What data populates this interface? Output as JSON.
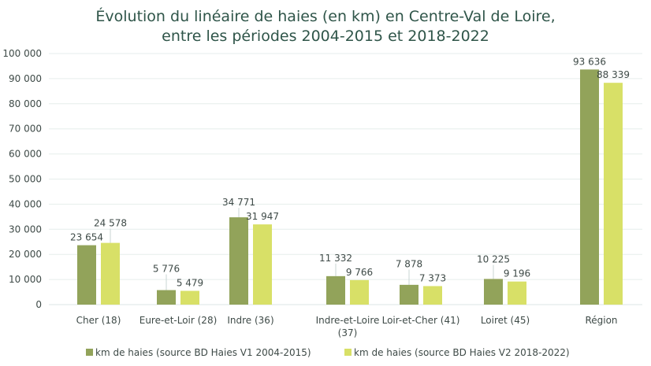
{
  "chart_data": {
    "type": "bar",
    "title": [
      "Évolution du linéaire de haies (en km) en Centre-Val de Loire,",
      "entre les périodes 2004-2015 et 2018-2022"
    ],
    "xlabel": "",
    "ylabel": "",
    "ylim": [
      0,
      100000
    ],
    "yticks": [
      0,
      10000,
      20000,
      30000,
      40000,
      50000,
      60000,
      70000,
      80000,
      90000,
      100000
    ],
    "ytick_labels": [
      "0",
      "10 000",
      "20 000",
      "30 000",
      "40 000",
      "50 000",
      "60 000",
      "70 000",
      "80 000",
      "90 000",
      "100 000"
    ],
    "grid": true,
    "categories": [
      [
        "Cher (18)"
      ],
      [
        "Eure-et-Loir (28)"
      ],
      [
        "Indre (36)"
      ],
      [
        "Indre-et-Loire",
        "(37)"
      ],
      [
        "Loir-et-Cher (41)"
      ],
      [
        "Loiret (45)"
      ],
      [
        "Région"
      ]
    ],
    "series": [
      {
        "name": "km de haies (source BD Haies V1 2004-2015)",
        "color": "#92a35a",
        "values": [
          23654,
          5776,
          34771,
          11332,
          7878,
          10225,
          93636
        ],
        "labels": [
          "23 654",
          "5 776",
          "34 771",
          "11 332",
          "7 878",
          "10 225",
          "93 636"
        ]
      },
      {
        "name": "km de haies (source BD Haies V2 2018-2022)",
        "color": "#d8e067",
        "values": [
          24578,
          5479,
          31947,
          9766,
          7373,
          9196,
          88339
        ],
        "labels": [
          "24 578",
          "5 479",
          "31 947",
          "9 766",
          "7 373",
          "9 196",
          "88 339"
        ]
      }
    ],
    "legend_position": "bottom"
  }
}
